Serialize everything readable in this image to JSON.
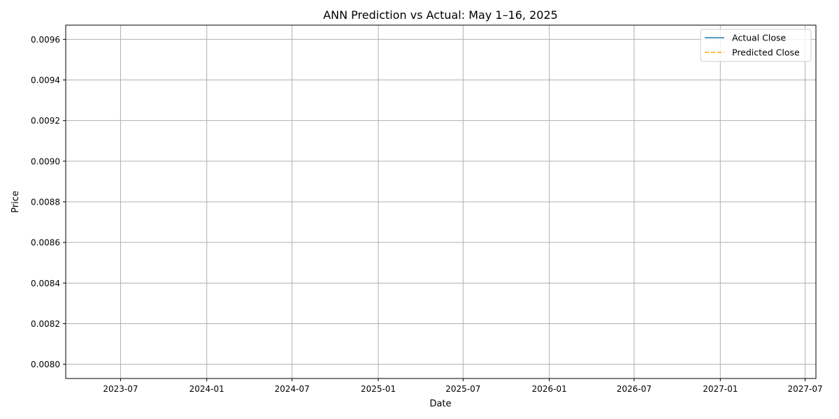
{
  "chart_data": {
    "type": "line",
    "title": "ANN Prediction vs Actual: May 1–16, 2025",
    "xlabel": "Date",
    "ylabel": "Price",
    "x_scale": "date",
    "x_ticks": [
      "2023-07",
      "2024-01",
      "2024-07",
      "2025-01",
      "2025-07",
      "2026-01",
      "2026-07",
      "2027-01",
      "2027-07"
    ],
    "y_ticks": [
      "0.0080",
      "0.0082",
      "0.0084",
      "0.0086",
      "0.0088",
      "0.0090",
      "0.0092",
      "0.0094",
      "0.0096"
    ],
    "xlim": [
      "2023-03-06",
      "2027-07-24"
    ],
    "ylim": [
      0.00793,
      0.00967
    ],
    "grid": true,
    "legend_position": "top-right",
    "series": [
      {
        "name": "Actual Close",
        "color": "#1f77b4",
        "line_style": "solid",
        "points": []
      },
      {
        "name": "Predicted Close",
        "color": "#ffa500",
        "line_style": "dashed",
        "points": []
      }
    ]
  }
}
